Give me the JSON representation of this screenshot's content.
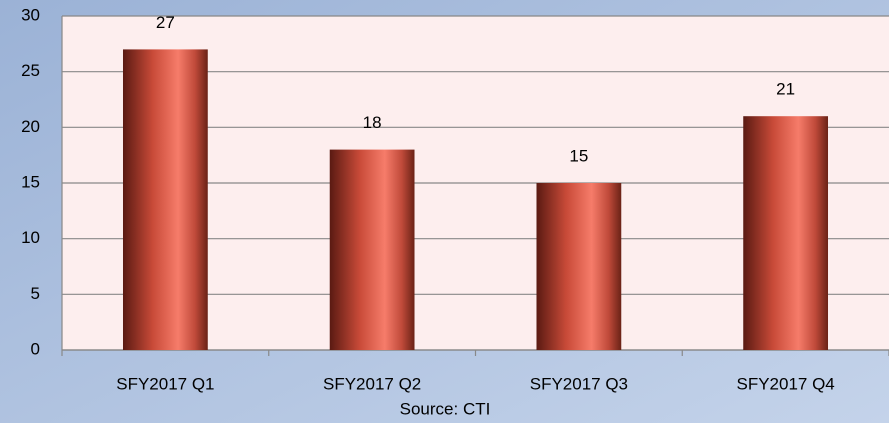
{
  "chart_data": {
    "type": "bar",
    "categories": [
      "SFY2017 Q1",
      "SFY2017 Q2",
      "SFY2017 Q3",
      "SFY2017 Q4"
    ],
    "values": [
      27,
      18,
      15,
      21
    ],
    "color": "#e8604a",
    "ylim": [
      0,
      30
    ],
    "yticks": [
      0,
      5,
      10,
      15,
      20,
      25,
      30
    ],
    "grid": true,
    "source": "Source: CTI"
  }
}
